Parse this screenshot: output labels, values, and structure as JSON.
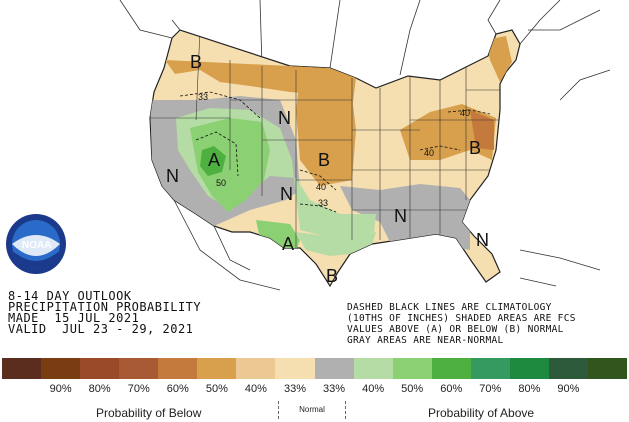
{
  "outlook": {
    "line1": "8-14 DAY OUTLOOK",
    "line2": "PRECIPITATION PROBABILITY",
    "line3": "MADE  15 JUL 2021",
    "line4": "VALID  JUL 23 - 29, 2021"
  },
  "note": {
    "line1": "DASHED BLACK LINES ARE CLIMATOLOGY",
    "line2": "(10THS OF INCHES) SHADED AREAS ARE FCS",
    "line3": "VALUES ABOVE (A) OR BELOW (B) NORMAL",
    "line4": "GRAY AREAS ARE NEAR-NORMAL"
  },
  "logo": {
    "text": "NOAA",
    "ring_text": "NATIONAL OCEANIC AND ATMOSPHERIC ADMINISTRATION · U.S. DEPARTMENT OF COMMERCE"
  },
  "map_labels": {
    "b_pacnw": "B",
    "b_plains": "B",
    "b_northeast": "B",
    "b_south_texas": "B",
    "a_southwest": "A",
    "a_texas": "A",
    "n_west": "N",
    "n_rockies": "N",
    "n_central": "N",
    "n_southeast": "N",
    "n_florida": "N",
    "c33_west": "33",
    "c50_sw": "50",
    "c40_plains": "40",
    "c33_plains": "33",
    "c40_ohio": "40",
    "c40_mid": "40"
  },
  "legend": {
    "colors": [
      "#5a2d1e",
      "#7a3d12",
      "#9a4a28",
      "#a85a35",
      "#c47a3c",
      "#d8a04c",
      "#ecc892",
      "#f5deb0",
      "#b0b0b0",
      "#b4dca4",
      "#8cd074",
      "#4eb040",
      "#349a60",
      "#1e8a40",
      "#2e5a3c",
      "#30561e"
    ],
    "labels": [
      "90%",
      "80%",
      "70%",
      "60%",
      "50%",
      "40%",
      "33%",
      "33%",
      "40%",
      "50%",
      "60%",
      "70%",
      "80%",
      "90%"
    ],
    "below_title": "Probability of Below",
    "normal_title": "Normal",
    "above_title": "Probability of Above"
  }
}
